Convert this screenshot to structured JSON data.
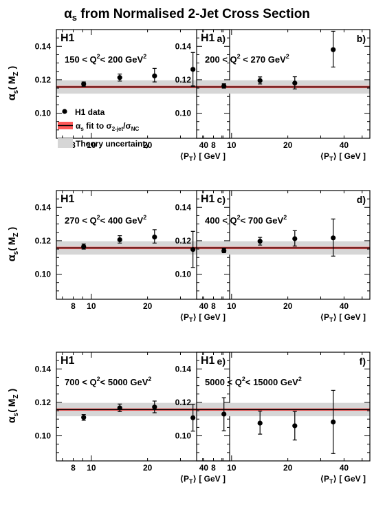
{
  "title_base": "α",
  "title_sub": "s",
  "title_rest": " from Normalised 2-Jet Cross Section",
  "colors": {
    "fit_band": "#ff5a5a",
    "fit_line": "#000000",
    "theory_band": "#d6d6d6"
  },
  "y_axis_label": {
    "base": "α",
    "sub1": "s",
    "open": "( M",
    "sub2": "Z",
    "close": " )"
  },
  "x_axis_label": {
    "open": "⟨P",
    "sub": "T",
    "close": "⟩  [ GeV ]"
  },
  "legend": {
    "data_label": "H1 data",
    "fit_label_base": "α",
    "fit_label_sub": "s",
    "fit_label_mid": " fit to σ",
    "fit_label_sub2": "2-jet",
    "fit_label_slash": "/σ",
    "fit_label_sub3": "NC",
    "theory_label": "Theory uncertainty"
  },
  "chart_data": {
    "type": "scatter",
    "x_scale": "log",
    "xlim": [
      6.5,
      55
    ],
    "ylim": [
      0.085,
      0.15
    ],
    "x_ticks": [
      8,
      10,
      20,
      40
    ],
    "y_ticks": [
      0.1,
      0.12,
      0.14
    ],
    "y_tick_labels": [
      "0.10",
      "0.12",
      "0.14"
    ],
    "fit_value": 0.1157,
    "fit_band": [
      0.115,
      0.1164
    ],
    "theory_band": [
      0.1117,
      0.1197
    ],
    "grid": false,
    "panels": [
      {
        "collab": "H1",
        "label": "a)",
        "q2_lo": "150",
        "q2_hi": "200",
        "rel1": " < Q",
        "rel2": "< 200 GeV",
        "x": [
          9.1,
          14.2,
          21.8,
          35.0
        ],
        "y": [
          0.1175,
          0.1213,
          0.1223,
          0.1262
        ],
        "err": [
          [
            0.1163,
            0.1187
          ],
          [
            0.1192,
            0.1234
          ],
          [
            0.1187,
            0.1268
          ],
          [
            0.1163,
            0.1363
          ]
        ]
      },
      {
        "collab": "H1",
        "label": "b)",
        "q2_lo": "200",
        "q2_hi": "270",
        "rel1": " < Q",
        "rel2": " < 270 GeV",
        "x": [
          9.1,
          14.2,
          21.8,
          35.0
        ],
        "y": [
          0.1163,
          0.1195,
          0.118,
          0.138
        ],
        "err": [
          [
            0.115,
            0.1176
          ],
          [
            0.1175,
            0.1217
          ],
          [
            0.1145,
            0.1218
          ],
          [
            0.1276,
            0.149
          ]
        ]
      },
      {
        "collab": "H1",
        "label": "c)",
        "q2_lo": "270",
        "q2_hi": "400",
        "rel1": " < Q",
        "rel2": "< 400 GeV",
        "x": [
          9.1,
          14.2,
          21.8,
          35.0
        ],
        "y": [
          0.1165,
          0.1206,
          0.1222,
          0.1148
        ],
        "err": [
          [
            0.115,
            0.118
          ],
          [
            0.1186,
            0.123
          ],
          [
            0.1186,
            0.1266
          ],
          [
            0.104,
            0.1256
          ]
        ]
      },
      {
        "collab": "H1",
        "label": "d)",
        "q2_lo": "400",
        "q2_hi": "700",
        "rel1": " < Q",
        "rel2": "< 700 GeV",
        "x": [
          9.1,
          14.2,
          21.8,
          35.0
        ],
        "y": [
          0.114,
          0.1197,
          0.1212,
          0.1217
        ],
        "err": [
          [
            0.1128,
            0.1152
          ],
          [
            0.1174,
            0.122
          ],
          [
            0.1168,
            0.126
          ],
          [
            0.1108,
            0.133
          ]
        ]
      },
      {
        "collab": "H1",
        "label": "e)",
        "q2_lo": "700",
        "q2_hi": "5000",
        "rel1": " < Q",
        "rel2": "< 5000 GeV",
        "x": [
          9.1,
          14.2,
          21.8,
          35.0
        ],
        "y": [
          0.111,
          0.1167,
          0.1172,
          0.1108
        ],
        "err": [
          [
            0.1093,
            0.1127
          ],
          [
            0.1145,
            0.119
          ],
          [
            0.1138,
            0.1208
          ],
          [
            0.1028,
            0.1188
          ]
        ]
      },
      {
        "collab": "H1",
        "label": "f)",
        "q2_lo": "5000",
        "q2_hi": "15000",
        "rel1": " < Q",
        "rel2": "< 15000 GeV",
        "x": [
          9.1,
          14.2,
          21.8,
          35.0
        ],
        "y": [
          0.113,
          0.1076,
          0.106,
          0.1083
        ],
        "err": [
          [
            0.103,
            0.1228
          ],
          [
            0.101,
            0.1148
          ],
          [
            0.0975,
            0.1146
          ],
          [
            0.0894,
            0.1272
          ]
        ]
      }
    ]
  }
}
